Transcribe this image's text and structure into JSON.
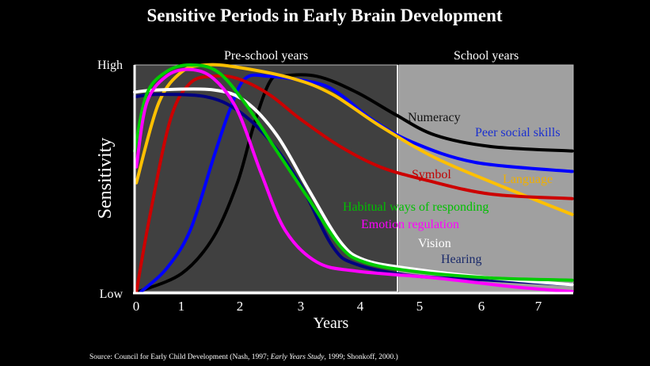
{
  "chart_data": {
    "type": "line",
    "title": "Sensitive Periods in Early Brain Development",
    "xlabel": "Years",
    "ylabel": "Sensitivity",
    "xlim": [
      0,
      7.35
    ],
    "ylim": [
      0,
      1
    ],
    "x_ticks": [
      "0",
      "1",
      "2",
      "3",
      "4",
      "5",
      "6",
      "7"
    ],
    "y_tick_labels": {
      "low": "Low",
      "high": "High"
    },
    "regions": [
      {
        "label": "Pre-school years",
        "from": 0,
        "to": 4.4,
        "color": "#404040"
      },
      {
        "label": "School years",
        "from": 4.4,
        "to": 7.35,
        "color": "#a0a0a0"
      }
    ],
    "grid": false,
    "series": [
      {
        "name": "Numeracy",
        "color": "#000000",
        "label_color": "#111111",
        "x": [
          0.07,
          0.79,
          1.32,
          1.72,
          1.99,
          2.25,
          2.45,
          3.05,
          3.71,
          4.37,
          5.03,
          5.96,
          7.32
        ],
        "y": [
          0,
          0.08,
          0.24,
          0.48,
          0.73,
          0.92,
          0.95,
          0.95,
          0.88,
          0.78,
          0.69,
          0.64,
          0.62
        ]
      },
      {
        "name": "Peer social skills",
        "color": "#0000ff",
        "label_color": "#1a2fd0",
        "x": [
          0.11,
          0.53,
          0.93,
          1.32,
          1.59,
          1.85,
          2.25,
          3.05,
          3.44,
          3.97,
          4.64,
          5.7,
          7.32
        ],
        "y": [
          0,
          0.1,
          0.27,
          0.59,
          0.8,
          0.94,
          0.95,
          0.92,
          0.87,
          0.76,
          0.66,
          0.57,
          0.53
        ]
      },
      {
        "name": "Language",
        "color": "#ffc000",
        "label_color": "#f0b000",
        "x": [
          0.03,
          0.4,
          0.79,
          1.19,
          1.72,
          2.65,
          3.31,
          4.11,
          5.03,
          6.09,
          7.32
        ],
        "y": [
          0.48,
          0.83,
          0.97,
          1.0,
          0.99,
          0.94,
          0.87,
          0.73,
          0.59,
          0.47,
          0.34
        ]
      },
      {
        "name": "Symbol",
        "color": "#cc0000",
        "label_color": "#c00000",
        "x": [
          0.03,
          0.26,
          0.6,
          0.93,
          1.32,
          1.72,
          2.25,
          2.78,
          3.44,
          4.11,
          4.9,
          5.96,
          7.32
        ],
        "y": [
          0,
          0.34,
          0.76,
          0.92,
          0.95,
          0.94,
          0.87,
          0.76,
          0.64,
          0.55,
          0.49,
          0.43,
          0.41
        ]
      },
      {
        "name": "Hearing",
        "color": "#000080",
        "label_color": "#1a2a6a",
        "x": [
          0,
          0.4,
          1.19,
          1.72,
          2.25,
          2.78,
          3.31,
          3.71,
          4.64,
          5.96,
          7.32
        ],
        "y": [
          0.86,
          0.87,
          0.86,
          0.8,
          0.67,
          0.47,
          0.2,
          0.12,
          0.07,
          0.05,
          0.03
        ]
      },
      {
        "name": "Vision",
        "color": "#ffffff",
        "label_color": "#ffffff",
        "x": [
          0,
          0.4,
          1.32,
          1.85,
          2.38,
          2.91,
          3.44,
          3.84,
          4.64,
          5.96,
          7.32
        ],
        "y": [
          0.88,
          0.89,
          0.89,
          0.84,
          0.69,
          0.45,
          0.22,
          0.14,
          0.1,
          0.06,
          0.03
        ]
      },
      {
        "name": "Habitual ways of responding",
        "color": "#00cc00",
        "label_color": "#00c000",
        "x": [
          0,
          0.2,
          0.53,
          0.93,
          1.39,
          1.85,
          2.38,
          2.91,
          3.44,
          3.84,
          4.64,
          5.96,
          7.32
        ],
        "y": [
          0.62,
          0.87,
          0.97,
          1.0,
          0.97,
          0.83,
          0.62,
          0.41,
          0.2,
          0.13,
          0.09,
          0.06,
          0.05
        ]
      },
      {
        "name": "Emotion regulation",
        "color": "#ff00ff",
        "label_color": "#ff00ff",
        "x": [
          0.03,
          0.2,
          0.53,
          0.93,
          1.32,
          1.72,
          2.12,
          2.52,
          3.05,
          3.71,
          5.03,
          6.36,
          7.32
        ],
        "y": [
          0.55,
          0.83,
          0.95,
          0.98,
          0.94,
          0.8,
          0.52,
          0.27,
          0.13,
          0.09,
          0.06,
          0.02,
          0
        ]
      }
    ],
    "source": {
      "prefix": "Source: Council for Early Child Development (Nash, 1997; ",
      "italic": "Early Years Study",
      "suffix": ", 1999; Shonkoff, 2000.)"
    }
  }
}
